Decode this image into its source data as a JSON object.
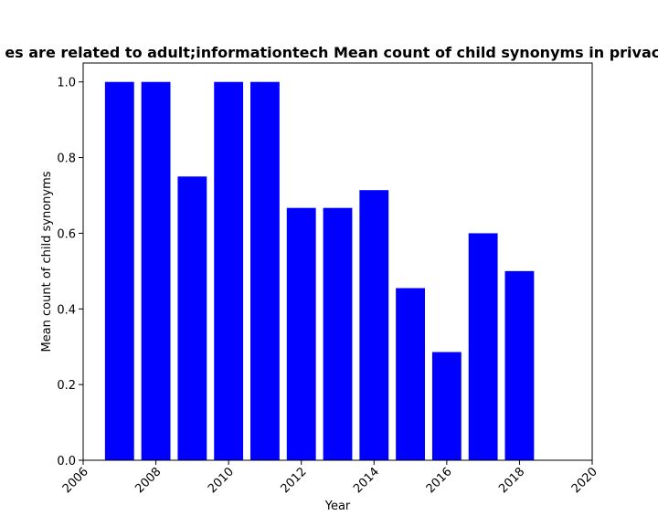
{
  "chart_data": {
    "type": "bar",
    "title": "es are related to adult;informationtech Mean count of child synonyms in privacy",
    "xlabel": "Year",
    "ylabel": "Mean count of child synonyms",
    "x": [
      2007,
      2008,
      2009,
      2010,
      2011,
      2012,
      2013,
      2014,
      2015,
      2016,
      2017,
      2018
    ],
    "values": [
      1.0,
      1.0,
      0.75,
      1.0,
      1.0,
      0.667,
      0.667,
      0.714,
      0.455,
      0.286,
      0.6,
      0.5
    ],
    "xlim": [
      2006,
      2020
    ],
    "ylim": [
      0,
      1.05
    ],
    "xticks": [
      "2006",
      "2008",
      "2010",
      "2012",
      "2014",
      "2016",
      "2018",
      "2020"
    ],
    "yticks": [
      "0.0",
      "0.2",
      "0.4",
      "0.6",
      "0.8",
      "1.0"
    ],
    "bar_color": "#0000ff",
    "grid": false,
    "legend": "none"
  }
}
